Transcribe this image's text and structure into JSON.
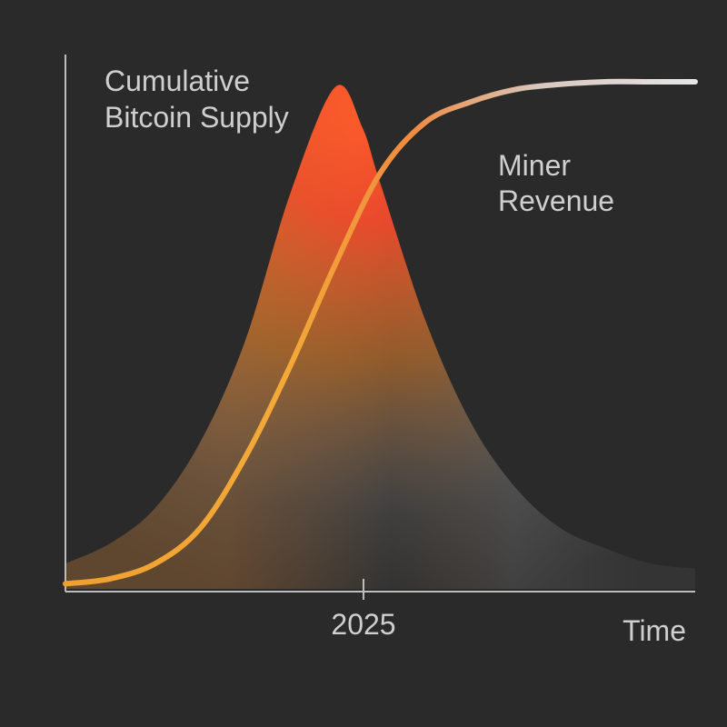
{
  "chart_data": {
    "type": "area",
    "annotations": {
      "supply": [
        "Cumulative",
        "Bitcoin Supply"
      ],
      "revenue": [
        "Miner",
        "Revenue"
      ]
    },
    "xlabel": "Time",
    "ylabel": "",
    "x_ticks": [
      "2025"
    ],
    "xlim": [
      1995,
      2065
    ],
    "ylim": [
      0,
      1
    ],
    "grid": false,
    "series": [
      {
        "type": "area",
        "x": [
          1995,
          2000,
          2005,
          2010,
          2015,
          2020,
          2025,
          2028,
          2030,
          2035,
          2040,
          2045,
          2050,
          2055,
          2060,
          2065
        ],
        "values": [
          0.05,
          0.09,
          0.16,
          0.29,
          0.49,
          0.78,
          0.99,
          0.91,
          0.8,
          0.53,
          0.33,
          0.2,
          0.12,
          0.08,
          0.05,
          0.04
        ]
      },
      {
        "type": "line",
        "x": [
          1995,
          2000,
          2005,
          2010,
          2015,
          2020,
          2025,
          2030,
          2035,
          2040,
          2045,
          2050,
          2055,
          2060,
          2065
        ],
        "values": [
          0.01,
          0.02,
          0.05,
          0.12,
          0.26,
          0.44,
          0.64,
          0.82,
          0.92,
          0.96,
          0.985,
          0.995,
          1.0,
          1.0,
          1.0
        ]
      }
    ]
  },
  "colors": {
    "background": "#2a2a2a",
    "axis": "#bdbdbd",
    "text": "#cfcfcf",
    "peak": "#ff5a2a",
    "orange": "#f08a2e",
    "line_start": "#f0a030",
    "line_end": "#e6e6e6",
    "gray": "#8f8f8f"
  }
}
